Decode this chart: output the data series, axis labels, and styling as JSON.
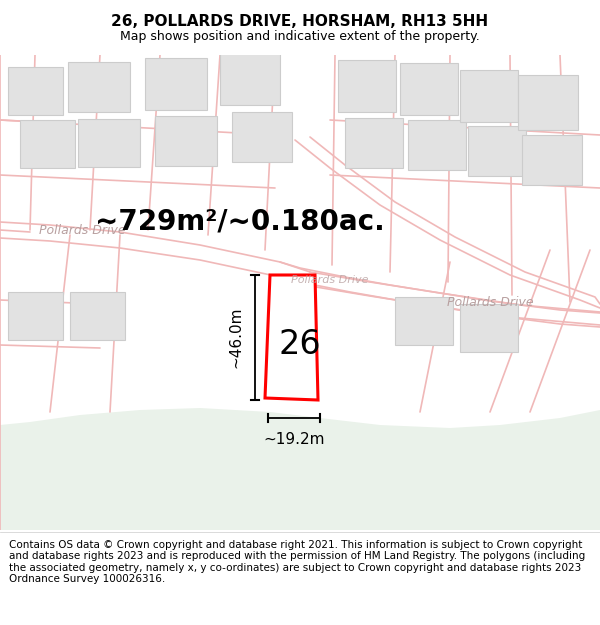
{
  "title_line1": "26, POLLARDS DRIVE, HORSHAM, RH13 5HH",
  "title_line2": "Map shows position and indicative extent of the property.",
  "area_text": "~729m²/~0.180ac.",
  "label_number": "26",
  "dim_height": "~46.0m",
  "dim_width": "~19.2m",
  "road_label_left": "Pollards Drive",
  "road_label_right": "Pollards Drive",
  "road_label_center": "Pollards Drive",
  "footer_text": "Contains OS data © Crown copyright and database right 2021. This information is subject to Crown copyright and database rights 2023 and is reproduced with the permission of HM Land Registry. The polygons (including the associated geometry, namely x, y co-ordinates) are subject to Crown copyright and database rights 2023 Ordnance Survey 100026316.",
  "bg_color": "#ffffff",
  "map_bg": "#f7f7f7",
  "plot_outline_color": "#ff0000",
  "building_fill": "#e2e2e2",
  "building_outline": "#cccccc",
  "road_line_color": "#f0b8b8",
  "green_area_color": "#eaf2ea",
  "dim_line_color": "#000000",
  "text_color": "#000000",
  "road_text_color": "#b8a0a0",
  "title_fontsize": 11,
  "subtitle_fontsize": 9,
  "area_fontsize": 20,
  "number_fontsize": 24,
  "dim_fontsize": 11,
  "road_fontsize": 9,
  "footer_fontsize": 7.5
}
